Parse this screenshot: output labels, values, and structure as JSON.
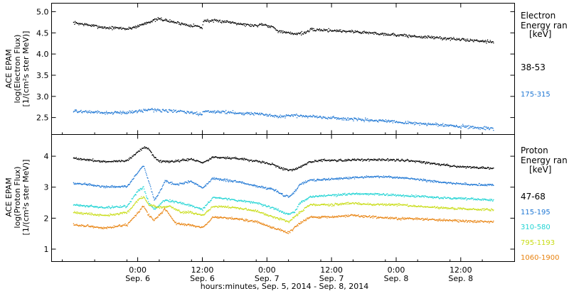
{
  "x_axis": {
    "title": "hours:minutes, Sep.  5, 2014 - Sep.  8, 2014",
    "ticks": [
      {
        "hour": 12,
        "time": "0:00",
        "date": "Sep. 6"
      },
      {
        "hour": 24,
        "time": "12:00",
        "date": "Sep. 6"
      },
      {
        "hour": 36,
        "time": "0:00",
        "date": "Sep. 7"
      },
      {
        "hour": 48,
        "time": "12:00",
        "date": "Sep. 7"
      },
      {
        "hour": 60,
        "time": "0:00",
        "date": "Sep. 8"
      },
      {
        "hour": 72,
        "time": "12:00",
        "date": "Sep. 8"
      }
    ]
  },
  "chart_data": [
    {
      "type": "scatter",
      "name": "electron",
      "ylabel_lines": [
        "ACE EPAM",
        "log(Electron Flux)",
        "[1/(cm²s ster MeV)]"
      ],
      "ylim": [
        2.1,
        5.2
      ],
      "yticks": [
        2.5,
        3.0,
        3.5,
        4.0,
        4.5,
        5.0
      ],
      "ytick_labels": [
        "2.5",
        "3.0",
        "3.5",
        "4.0",
        "4.5",
        "5.0"
      ],
      "legend_title": [
        "Electron",
        "Energy ran",
        "[keV]"
      ],
      "x_unit": "hours since Sep. 5 12:00",
      "series": [
        {
          "name": "38-53",
          "color": "#000000",
          "x": [
            0,
            6,
            9,
            10,
            12,
            14,
            16,
            18,
            20,
            21,
            23,
            23.9,
            24.1,
            26,
            28,
            30,
            32,
            34,
            35,
            37,
            38,
            39,
            41,
            43,
            44,
            46,
            49,
            52,
            55,
            58,
            61,
            64,
            67,
            70,
            73,
            76,
            78
          ],
          "y": [
            4.75,
            4.63,
            4.62,
            4.6,
            4.67,
            4.77,
            4.84,
            4.78,
            4.73,
            4.7,
            4.67,
            4.62,
            4.8,
            4.79,
            4.78,
            4.75,
            4.7,
            4.68,
            4.72,
            4.65,
            4.56,
            4.52,
            4.49,
            4.51,
            4.58,
            4.58,
            4.56,
            4.54,
            4.51,
            4.48,
            4.45,
            4.42,
            4.4,
            4.37,
            4.34,
            4.32,
            4.3
          ]
        },
        {
          "name": "175-315",
          "color": "#1f77d4",
          "x": [
            0,
            6,
            10,
            12,
            14,
            18,
            21,
            23.9,
            24.1,
            28,
            32,
            35,
            38,
            40,
            43,
            46,
            52,
            58,
            64,
            70,
            76,
            78
          ],
          "y": [
            2.66,
            2.62,
            2.63,
            2.66,
            2.7,
            2.67,
            2.64,
            2.58,
            2.66,
            2.64,
            2.61,
            2.59,
            2.52,
            2.56,
            2.55,
            2.52,
            2.47,
            2.42,
            2.37,
            2.32,
            2.27,
            2.25
          ]
        }
      ]
    },
    {
      "type": "scatter",
      "name": "proton",
      "ylabel_lines": [
        "ACE EPAM",
        "log(Proton Flux)",
        "[1/(cm²s ster MeV)]"
      ],
      "ylim": [
        0.6,
        4.7
      ],
      "yticks": [
        1,
        2,
        3,
        4
      ],
      "ytick_labels": [
        "1",
        "2",
        "3",
        "4"
      ],
      "legend_title": [
        "Proton",
        "Energy ran",
        "[keV]"
      ],
      "x_unit": "hours since Sep. 5 12:00",
      "series": [
        {
          "name": "47-68",
          "color": "#000000",
          "x": [
            0,
            6,
            10,
            13,
            14,
            15,
            16,
            19,
            22,
            24,
            26,
            30,
            34,
            37,
            39,
            40,
            42,
            44,
            46,
            50,
            54,
            58,
            62,
            66,
            70,
            74,
            78
          ],
          "y": [
            3.95,
            3.83,
            3.88,
            4.3,
            4.25,
            3.98,
            3.85,
            3.85,
            3.92,
            3.8,
            3.98,
            3.95,
            3.85,
            3.75,
            3.6,
            3.55,
            3.65,
            3.82,
            3.88,
            3.88,
            3.9,
            3.9,
            3.88,
            3.8,
            3.7,
            3.65,
            3.63
          ]
        },
        {
          "name": "115-195",
          "color": "#1f77d4",
          "x": [
            0,
            6,
            10,
            12,
            13,
            14,
            15,
            16,
            17,
            19,
            22,
            24,
            26,
            30,
            34,
            37,
            39,
            40,
            41,
            42,
            44,
            46,
            50,
            54,
            58,
            62,
            66,
            70,
            74,
            78
          ],
          "y": [
            3.15,
            3.02,
            3.05,
            3.5,
            3.7,
            3.2,
            2.6,
            2.85,
            3.2,
            3.1,
            3.2,
            3.0,
            3.3,
            3.2,
            3.05,
            2.95,
            2.75,
            2.7,
            2.85,
            3.1,
            3.25,
            3.25,
            3.3,
            3.35,
            3.35,
            3.3,
            3.22,
            3.15,
            3.1,
            3.08
          ]
        },
        {
          "name": "310-580",
          "color": "#22d4d4",
          "x": [
            0,
            6,
            10,
            12,
            13,
            14,
            15,
            17,
            20,
            22,
            24,
            26,
            30,
            34,
            37,
            39,
            40,
            41,
            42,
            44,
            48,
            52,
            56,
            60,
            64,
            68,
            72,
            76,
            78
          ],
          "y": [
            2.45,
            2.35,
            2.4,
            2.9,
            3.0,
            2.5,
            2.3,
            2.6,
            2.5,
            2.4,
            2.3,
            2.7,
            2.6,
            2.5,
            2.35,
            2.2,
            2.15,
            2.2,
            2.5,
            2.7,
            2.75,
            2.8,
            2.8,
            2.75,
            2.72,
            2.68,
            2.65,
            2.62,
            2.6
          ]
        },
        {
          "name": "795-1193",
          "color": "#c8dc14",
          "x": [
            0,
            6,
            10,
            12,
            13,
            14,
            16,
            18,
            20,
            22,
            24,
            26,
            30,
            34,
            37,
            39,
            40,
            42,
            44,
            48,
            52,
            56,
            60,
            64,
            68,
            72,
            76,
            78
          ],
          "y": [
            2.2,
            2.1,
            2.2,
            2.6,
            2.7,
            2.45,
            2.35,
            2.4,
            2.2,
            2.2,
            2.1,
            2.4,
            2.35,
            2.25,
            2.05,
            1.95,
            1.9,
            2.2,
            2.45,
            2.45,
            2.5,
            2.45,
            2.45,
            2.4,
            2.35,
            2.32,
            2.3,
            2.28
          ]
        },
        {
          "name": "1060-1900",
          "color": "#e8820e",
          "x": [
            0,
            6,
            10,
            12,
            13,
            14,
            15,
            17,
            19,
            21,
            23,
            24,
            26,
            30,
            34,
            37,
            39,
            40,
            42,
            44,
            48,
            52,
            56,
            60,
            64,
            68,
            72,
            76,
            78
          ],
          "y": [
            1.8,
            1.7,
            1.8,
            2.2,
            2.4,
            2.1,
            1.95,
            2.3,
            1.85,
            1.8,
            1.75,
            1.7,
            2.05,
            2.0,
            1.9,
            1.7,
            1.6,
            1.55,
            1.85,
            2.05,
            2.05,
            2.1,
            2.05,
            2.0,
            2.0,
            1.95,
            1.93,
            1.9,
            1.9
          ]
        }
      ]
    }
  ]
}
